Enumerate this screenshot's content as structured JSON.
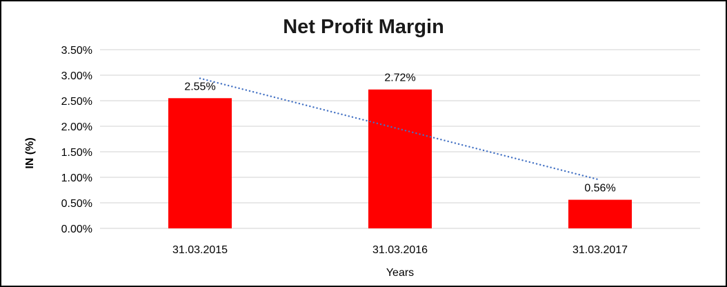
{
  "chart_data": {
    "type": "bar",
    "title": "Net Profit Margin",
    "xlabel": "Years",
    "ylabel": "IN (%)",
    "categories": [
      "31.03.2015",
      "31.03.2016",
      "31.03.2017"
    ],
    "values": [
      2.55,
      2.72,
      0.56
    ],
    "data_labels": [
      "2.55%",
      "2.72%",
      "0.56%"
    ],
    "ytick_labels": [
      "0.00%",
      "0.50%",
      "1.00%",
      "1.50%",
      "2.00%",
      "2.50%",
      "3.00%",
      "3.50%"
    ],
    "ytick_values": [
      0,
      0.5,
      1.0,
      1.5,
      2.0,
      2.5,
      3.0,
      3.5
    ],
    "ylim": [
      0,
      3.5
    ],
    "grid": true,
    "legend": false,
    "bar_color": "#ff0000",
    "gridline_color": "#d9d9d9",
    "trendline": {
      "type": "linear",
      "style": "dotted",
      "color": "#4472c4"
    }
  }
}
